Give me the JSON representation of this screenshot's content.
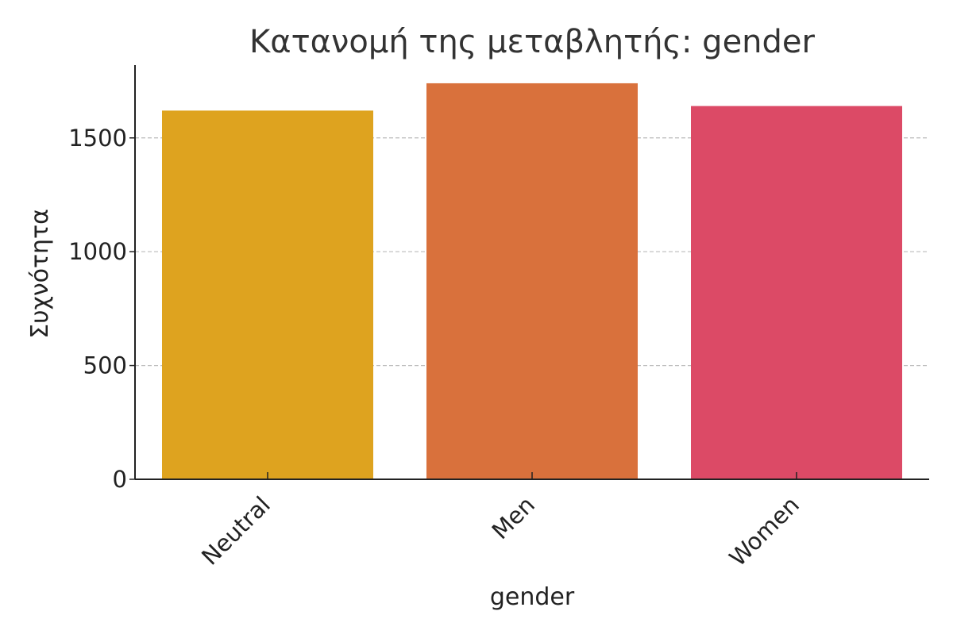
{
  "chart_data": {
    "type": "bar",
    "title": "Κατανομή της μεταβλητής: gender",
    "xlabel": "gender",
    "ylabel": "Συχνότητα",
    "categories": [
      "Neutral",
      "Men",
      "Women"
    ],
    "values": [
      1620,
      1740,
      1640
    ],
    "colors": [
      "#DEA31F",
      "#D9713C",
      "#DC4A66"
    ],
    "ylim": [
      0,
      1820
    ],
    "yticks": [
      0,
      500,
      1000,
      1500
    ],
    "grid": "y-dashed",
    "legend": "none"
  },
  "style": {
    "axis_color": "#222222",
    "grid_color": "#bbbbbb",
    "text_color": "#222222",
    "title_color": "#333333"
  }
}
